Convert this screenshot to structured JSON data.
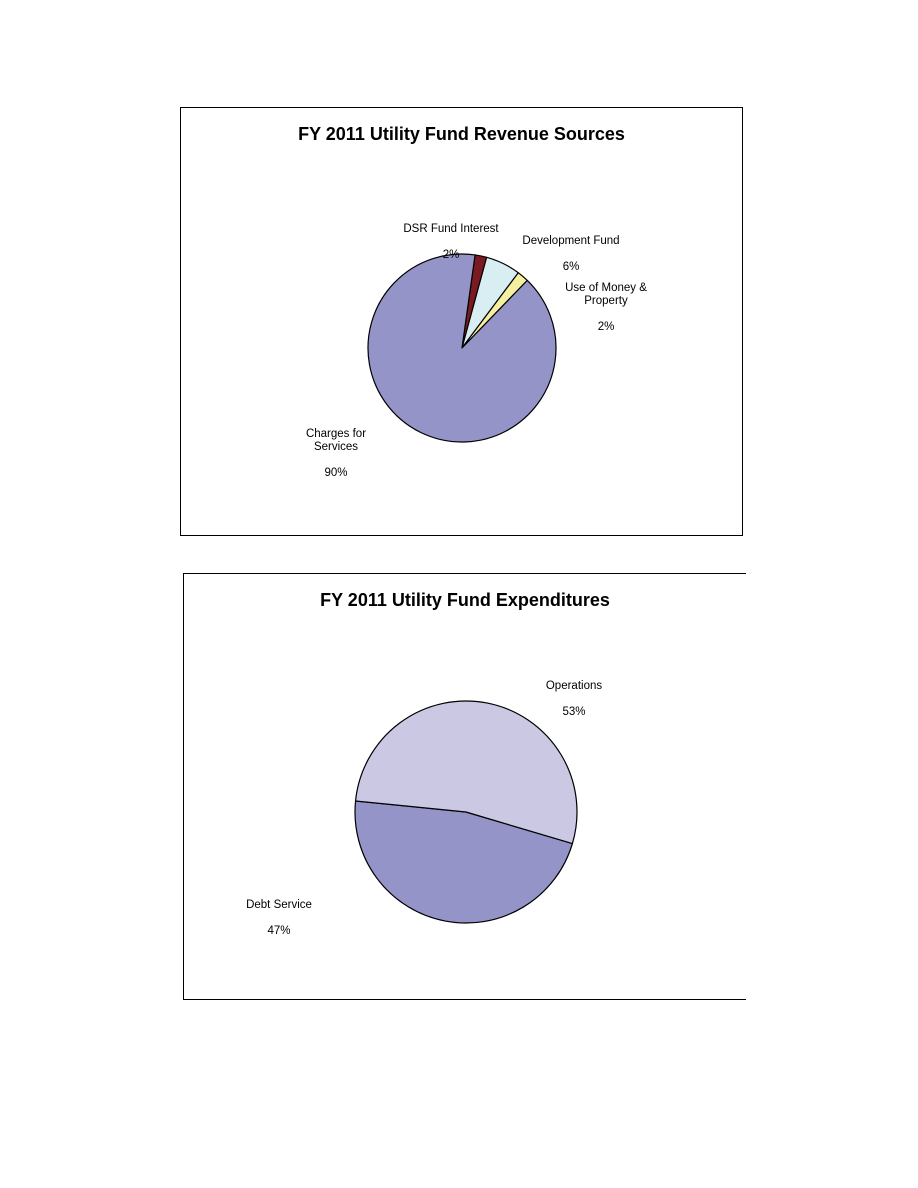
{
  "chart_data": [
    {
      "type": "pie",
      "title": "FY 2011 Utility Fund Revenue Sources",
      "slices": [
        {
          "label": "DSR Fund Interest",
          "value": 2,
          "value_label": "2%",
          "color": "#7B1A22"
        },
        {
          "label": "Development Fund",
          "value": 6,
          "value_label": "6%",
          "color": "#D9EEF3"
        },
        {
          "label": "Use of Money & Property",
          "value": 2,
          "value_label": "2%",
          "color": "#F5F0A0"
        },
        {
          "label": "Charges for Services",
          "value": 90,
          "value_label": "90%",
          "color": "#9494C8"
        }
      ],
      "legend": "none"
    },
    {
      "type": "pie",
      "title": "FY 2011 Utility Fund Expenditures",
      "slices": [
        {
          "label": "Operations",
          "value": 53,
          "value_label": "53%",
          "color": "#CBC8E4"
        },
        {
          "label": "Debt Service",
          "value": 47,
          "value_label": "47%",
          "color": "#9494C8"
        }
      ],
      "legend": "none"
    }
  ]
}
